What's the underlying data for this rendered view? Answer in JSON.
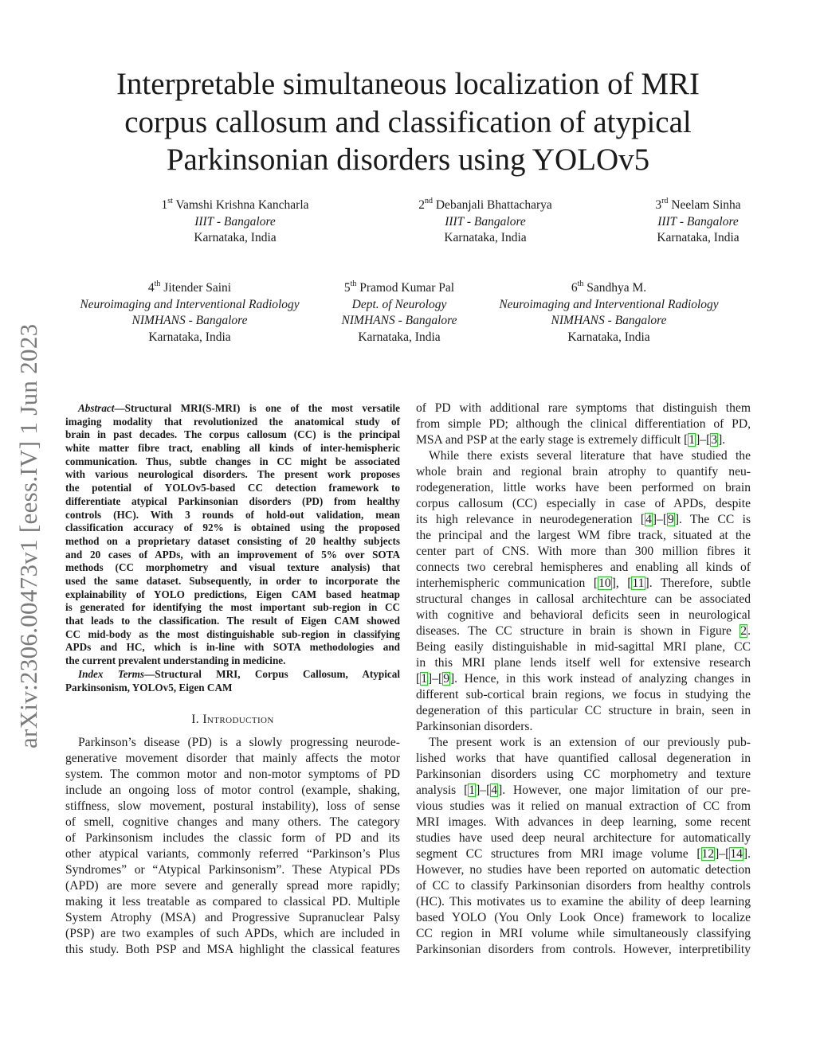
{
  "title_lines": [
    "Interpretable simultaneous localization of MRI",
    "corpus callosum and classification of atypical",
    "Parkinsonian disorders using YOLOv5"
  ],
  "arxiv_stamp": "arXiv:2306.00473v1  [eess.IV]  1 Jun 2023",
  "authors": [
    {
      "ord": "1",
      "sup": "st",
      "name": "Vamshi Krishna Kancharla",
      "affiliation": "IIIT - Bangalore",
      "location": "Karnataka, India"
    },
    {
      "ord": "2",
      "sup": "nd",
      "name": "Debanjali Bhattacharya",
      "affiliation": "IIIT - Bangalore",
      "location": "Karnataka, India"
    },
    {
      "ord": "3",
      "sup": "rd",
      "name": "Neelam Sinha",
      "affiliation": "IIIT - Bangalore",
      "location": "Karnataka, India"
    },
    {
      "ord": "4",
      "sup": "th",
      "name": "Jitender Saini",
      "affiliation": "Neuroimaging and Interventional Radiology",
      "affiliation2": "NIMHANS - Bangalore",
      "location": "Karnataka, India"
    },
    {
      "ord": "5",
      "sup": "th",
      "name": "Pramod Kumar Pal",
      "affiliation": "Dept. of Neurology",
      "affiliation2": "NIMHANS - Bangalore",
      "location": "Karnataka, India"
    },
    {
      "ord": "6",
      "sup": "th",
      "name": "Sandhya M.",
      "affiliation": "Neuroimaging and Interventional Radiology",
      "affiliation2": "NIMHANS - Bangalore",
      "location": "Karnataka, India"
    }
  ],
  "abstract": {
    "lead": "Abstract",
    "lines": [
      "—Structural MRI(S-MRI) is one of the most versatile",
      "imaging modality that revolutionized the anatomical study of",
      "brain in past decades. The corpus callosum (CC) is the principal",
      "white matter fibre tract, enabling all kinds of inter-hemispheric",
      "communication. Thus, subtle changes in CC might be associated",
      "with various neurological disorders. The present work proposes",
      "the potential of YOLOv5-based CC detection framework to",
      "differentiate atypical Parkinsonian disorders (PD) from healthy",
      "controls (HC). With 3 rounds of hold-out validation, mean",
      "classification accuracy of 92% is obtained using the proposed",
      "method on a proprietary dataset consisting of 20 healthy subjects",
      "and 20 cases of APDs, with an improvement of 5% over SOTA",
      "methods (CC morphometry and visual texture analysis) that",
      "used the same dataset. Subsequently, in order to incorporate the",
      "explainability of YOLO predictions, Eigen CAM based heatmap",
      "is generated for identifying the most important sub-region in CC",
      "that leads to the classification. The result of Eigen CAM showed",
      "CC mid-body as the most distinguishable sub-region in classifying",
      "APDs and HC, which is in-line with SOTA methodologies and",
      "the current prevalent understanding in medicine."
    ]
  },
  "index_terms": {
    "lead": "Index Terms",
    "lines": [
      "—Structural MRI, Corpus Callosum, Atypical",
      "Parkinsonism, YOLOv5, Eigen CAM"
    ]
  },
  "section_heading": "I. Introduction",
  "left_body": [
    "Parkinson’s disease (PD) is a slowly progressing neurode-",
    "generative movement disorder that mainly affects the motor",
    "system. The common motor and non-motor symptoms of PD",
    "include an ongoing loss of motor control (example, shaking,",
    "stiffness, slow movement, postural instability), loss of sense",
    "of smell, cognitive changes and many others. The category",
    "of Parkinsonism includes the classic form of PD and its",
    "other atypical variants, commonly referred “Parkinson’s Plus",
    "Syndromes” or “Atypical Parkinsonism”. These Atypical PDs",
    "(APD) are more severe and generally spread more rapidly;",
    "making it less treatable as compared to classical PD. Multiple",
    "System Atrophy (MSA) and Progressive Supranuclear Palsy",
    "(PSP) are two examples of such APDs, which are included in",
    "this study. Both PSP and MSA highlight the classical features"
  ],
  "right_body": [
    "of PD with additional rare symptoms that distinguish them",
    "from simple PD; although the clinical differentiation of PD,",
    "MSA and PSP at the early stage is extremely difficult [1]–[3].",
    "While there exists several literature that have studied the",
    "whole brain and regional brain atrophy to quantify neu-",
    "rodegeneration, little works have been performed on brain",
    "corpus callosum (CC) especially in case of APDs, despite",
    "its high relevance in neurodegeneration [4]–[9]. The CC is",
    "the principal and the largest WM fibre track, situated at the",
    "center part of CNS. With more than 300 million fibres it",
    "connects two cerebral hemispheres and enabling all kinds of",
    "interhemispheric communication [10], [11]. Therefore, subtle",
    "structural changes in callosal architechture can be associated",
    "with cognitive and behavioral deficits seen in neurological",
    "diseases. The CC structure in brain is shown in Figure 2.",
    "Being easily distinguishable in mid-sagittal MRI plane, CC",
    "in this MRI plane lends itself well for extensive research",
    "[1]–[9]. Hence, in this work instead of analyzing changes in",
    "different sub-cortical brain regions, we focus in studying the",
    "degeneration of this particular CC structure in brain, seen in",
    "Parkinsonian disorders.",
    "The present work is an extension of our previously pub-",
    "lished works that have quantified callosal degeneration in",
    "Parkinsonian disorders using CC morphometry and texture",
    "analysis [1]–[4]. However, one major limitation of our pre-",
    "vious studies was it relied on manual extraction of CC from",
    "MRI images. With advances in deep learning, some recent",
    "studies have used deep neural architecture for automatically",
    "segment CC structures from MRI image volume [12]–[14].",
    "However, no studies have been reported on automatic detection",
    "of CC to classify Parkinsonian disorders from healthy controls",
    "(HC). This motivates us to examine the ability of deep learning",
    "based YOLO (You Only Look Once) framework to localize",
    "CC region in MRI volume while simultaneously classifying",
    "Parkinsonian disorders from controls. However, interpretibility"
  ],
  "citation_box_color": "#22cc22"
}
